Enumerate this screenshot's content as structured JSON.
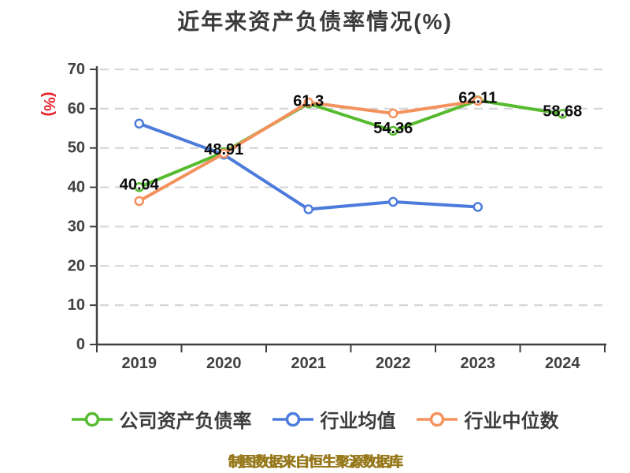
{
  "chart_data": {
    "type": "line",
    "title": "近年来资产负债率情况(%)",
    "y_axis_name": "(%)",
    "categories": [
      "2019",
      "2020",
      "2021",
      "2022",
      "2023",
      "2024"
    ],
    "ylim": [
      0,
      70
    ],
    "ytick_step": 10,
    "grid": "horizontal-dashed",
    "legend_position": "bottom",
    "series": [
      {
        "key": "company-debt-ratio",
        "name": "公司资产负债率",
        "color": "#57bb2f",
        "values": [
          40.04,
          48.91,
          61.3,
          54.36,
          62.11,
          58.68
        ],
        "point_labels": [
          "40.04",
          "48.91",
          "61.3",
          "54.36",
          "62.11",
          "58.68"
        ]
      },
      {
        "key": "industry-mean",
        "name": "行业均值",
        "color": "#4c7bdb",
        "values": [
          56.2,
          48.3,
          34.4,
          36.3,
          35.0,
          null
        ]
      },
      {
        "key": "industry-median",
        "name": "行业中位数",
        "color": "#f4925e",
        "values": [
          36.5,
          48.6,
          61.6,
          58.8,
          62.0,
          null
        ]
      }
    ],
    "footer": "制图数据来自恒生聚源数据库",
    "colors": {
      "axis": "#404040",
      "grid": "#d6d6d6",
      "tick_label": "#404040",
      "title": "#3b3b3b",
      "y_axis_name": "#e62129",
      "point_label": "#0c0c0c",
      "legend_text": "#3d3d3d",
      "footer_text": "#97791c",
      "background": "#ffffff"
    }
  }
}
